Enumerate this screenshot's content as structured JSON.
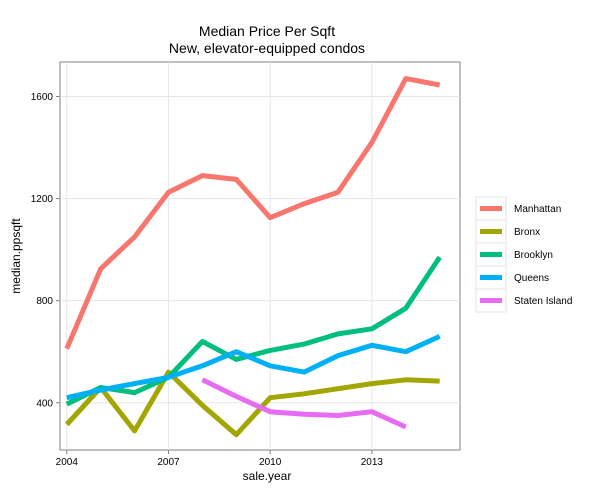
{
  "chart_data": {
    "type": "line",
    "title": "Median Price Per Sqft",
    "subtitle": "New, elevator-equipped condos",
    "xlabel": "sale.year",
    "ylabel": "median.ppsqft",
    "xlim": [
      2003.8,
      2015.6
    ],
    "ylim": [
      215,
      1735
    ],
    "x_ticks": [
      2004,
      2007,
      2010,
      2013
    ],
    "y_ticks": [
      400,
      800,
      1200,
      1600
    ],
    "grid": true,
    "legend_position": "right",
    "series": [
      {
        "name": "Manhattan",
        "color": "#F8766D",
        "x": [
          2004,
          2005,
          2006,
          2007,
          2008,
          2009,
          2010,
          2011,
          2012,
          2013,
          2014,
          2015
        ],
        "y": [
          612,
          925,
          1050,
          1225,
          1290,
          1275,
          1125,
          1180,
          1225,
          1420,
          1670,
          1645
        ]
      },
      {
        "name": "Bronx",
        "color": "#A3A500",
        "x": [
          2004,
          2005,
          2006,
          2007,
          2008,
          2009,
          2010,
          2011,
          2012,
          2013,
          2014,
          2015
        ],
        "y": [
          315,
          460,
          290,
          520,
          390,
          275,
          420,
          435,
          455,
          475,
          490,
          485
        ]
      },
      {
        "name": "Brooklyn",
        "color": "#00BF7D",
        "x": [
          2004,
          2005,
          2006,
          2007,
          2008,
          2009,
          2010,
          2011,
          2012,
          2013,
          2014,
          2015
        ],
        "y": [
          395,
          460,
          440,
          500,
          640,
          570,
          605,
          630,
          670,
          690,
          770,
          970
        ]
      },
      {
        "name": "Queens",
        "color": "#00B0F6",
        "x": [
          2004,
          2005,
          2006,
          2007,
          2008,
          2009,
          2010,
          2011,
          2012,
          2013,
          2014,
          2015
        ],
        "y": [
          420,
          450,
          475,
          500,
          545,
          600,
          545,
          520,
          585,
          625,
          600,
          660
        ]
      },
      {
        "name": "Staten Island",
        "color": "#E76BF3",
        "x": [
          2008,
          2009,
          2010,
          2011,
          2012,
          2013,
          2014
        ],
        "y": [
          490,
          425,
          365,
          355,
          350,
          365,
          305
        ]
      }
    ]
  }
}
